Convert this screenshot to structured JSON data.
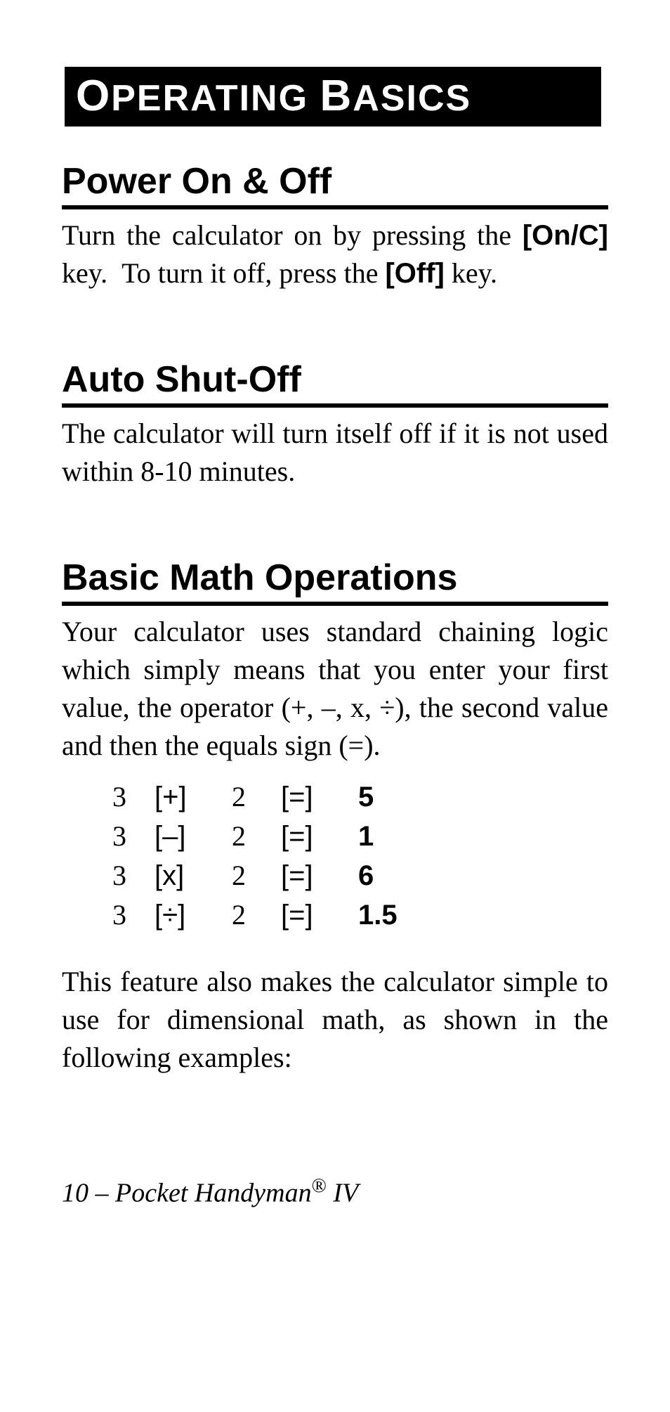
{
  "chapter": {
    "title_html": "<span class=\"cap\">O</span>PERATING <span class=\"cap\">B</span>ASICS"
  },
  "sections": {
    "power": {
      "heading": "Power On & Off",
      "body_html": "Turn the calculator on by pressing the <span class=\"key\">[On/C]</span> key.&nbsp;&nbsp;To turn it off, press the <span class=\"key\">[Off]</span> key."
    },
    "auto": {
      "heading": "Auto Shut-Off",
      "body": "The calculator will turn itself off if it is not used within 8-10 minutes."
    },
    "basic": {
      "heading": "Basic Math Operations",
      "intro": "Your calculator uses standard chaining logic which simply means that you enter your first value, the operator (+, –, x, ÷), the second value and then the equals sign (=).",
      "examples": [
        {
          "a": "3",
          "op": "[+]",
          "b": "2",
          "eq": "[=]",
          "res": "5"
        },
        {
          "a": "3",
          "op": "[–]",
          "b": "2",
          "eq": "[=]",
          "res": "1"
        },
        {
          "a": "3",
          "op": "[x]",
          "b": "2",
          "eq": "[=]",
          "res": "6"
        },
        {
          "a": "3",
          "op": "[÷]",
          "b": "2",
          "eq": "[=]",
          "res": "1.5"
        }
      ],
      "outro": "This feature also makes the calculator simple to use for dimensional math, as shown in the following examples:"
    }
  },
  "footer": {
    "page_number": "10",
    "title": "Pocket Handyman",
    "suffix": "IV"
  },
  "colors": {
    "bg": "#ffffff",
    "text": "#000000",
    "banner_bg": "#000000",
    "banner_text": "#ffffff"
  },
  "typography": {
    "heading_family": "Arial",
    "body_family": "Georgia",
    "heading_size_pt": 39,
    "body_size_pt": 30
  }
}
